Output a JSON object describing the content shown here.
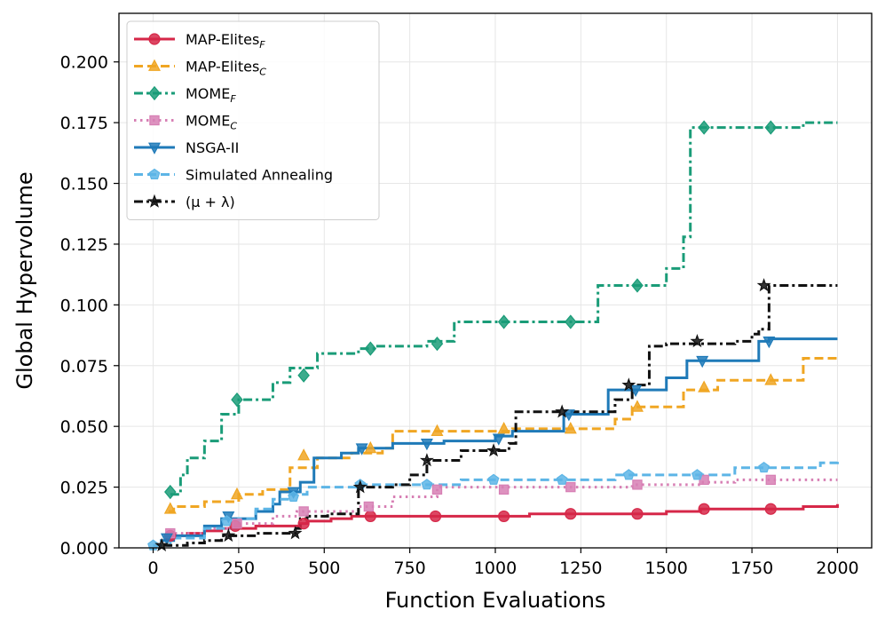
{
  "chart_data": {
    "type": "line",
    "title": "",
    "xlabel": "Function Evaluations",
    "ylabel": "Global Hypervolume",
    "xlim": [
      -100,
      2100
    ],
    "ylim": [
      0,
      0.22
    ],
    "xticks": [
      0,
      250,
      500,
      750,
      1000,
      1250,
      1500,
      1750,
      2000
    ],
    "xtick_labels": [
      "0",
      "250",
      "500",
      "750",
      "1000",
      "1250",
      "1500",
      "1750",
      "2000"
    ],
    "yticks": [
      0,
      0.025,
      0.05,
      0.075,
      0.1,
      0.125,
      0.15,
      0.175,
      0.2
    ],
    "ytick_labels": [
      "0.000",
      "0.025",
      "0.050",
      "0.075",
      "0.100",
      "0.125",
      "0.150",
      "0.175",
      "0.200"
    ],
    "grid": true,
    "legend_position": "top-left",
    "step": true,
    "series": [
      {
        "name": "MAP-Elites",
        "subscript": "F",
        "color": "#d62748",
        "dash": "solid",
        "marker": "circle",
        "x": [
          50,
          100,
          150,
          200,
          300,
          350,
          430,
          450,
          520,
          580,
          700,
          800,
          1000,
          1100,
          1300,
          1500,
          1600,
          1800,
          1900,
          2000
        ],
        "y": [
          0.005,
          0.006,
          0.007,
          0.008,
          0.009,
          0.009,
          0.01,
          0.011,
          0.012,
          0.013,
          0.013,
          0.013,
          0.013,
          0.014,
          0.014,
          0.015,
          0.016,
          0.016,
          0.017,
          0.018
        ],
        "marker_x": [
          50,
          240,
          440,
          635,
          825,
          1025,
          1220,
          1415,
          1610,
          1805
        ],
        "marker_y": [
          0.005,
          0.009,
          0.01,
          0.013,
          0.013,
          0.013,
          0.014,
          0.014,
          0.016,
          0.016
        ]
      },
      {
        "name": "MAP-Elites",
        "subscript": "C",
        "color": "#f0a623",
        "dash": "dashed",
        "marker": "triangle-up",
        "x": [
          45,
          60,
          150,
          250,
          320,
          400,
          480,
          580,
          670,
          700,
          1050,
          1350,
          1400,
          1550,
          1650,
          1900,
          2000
        ],
        "y": [
          0.015,
          0.017,
          0.019,
          0.022,
          0.024,
          0.033,
          0.037,
          0.039,
          0.041,
          0.048,
          0.049,
          0.053,
          0.058,
          0.065,
          0.069,
          0.078,
          0.078
        ],
        "marker_x": [
          50,
          245,
          440,
          635,
          830,
          1025,
          1220,
          1415,
          1610,
          1805
        ],
        "marker_y": [
          0.016,
          0.022,
          0.038,
          0.041,
          0.048,
          0.049,
          0.049,
          0.058,
          0.066,
          0.069
        ]
      },
      {
        "name": "MOME",
        "subscript": "F",
        "color": "#1a9c78",
        "dash": "dashdot",
        "marker": "diamond",
        "x": [
          50,
          80,
          100,
          150,
          200,
          250,
          350,
          400,
          480,
          600,
          650,
          800,
          880,
          1000,
          1200,
          1300,
          1400,
          1500,
          1550,
          1570,
          1800,
          1900,
          2000
        ],
        "y": [
          0.022,
          0.03,
          0.037,
          0.044,
          0.055,
          0.061,
          0.068,
          0.074,
          0.08,
          0.082,
          0.083,
          0.085,
          0.093,
          0.093,
          0.093,
          0.108,
          0.108,
          0.115,
          0.128,
          0.173,
          0.173,
          0.175,
          0.175
        ],
        "marker_x": [
          50,
          245,
          440,
          635,
          830,
          1025,
          1220,
          1415,
          1610,
          1805
        ],
        "marker_y": [
          0.023,
          0.061,
          0.071,
          0.082,
          0.084,
          0.093,
          0.093,
          0.108,
          0.173,
          0.173
        ]
      },
      {
        "name": "MOME",
        "subscript": "C",
        "color": "#d77fb4",
        "dash": "dotted",
        "marker": "square",
        "x": [
          30,
          60,
          150,
          250,
          350,
          420,
          600,
          700,
          830,
          1000,
          1300,
          1400,
          1600,
          1700,
          2000
        ],
        "y": [
          0.003,
          0.006,
          0.008,
          0.01,
          0.013,
          0.015,
          0.017,
          0.021,
          0.025,
          0.025,
          0.025,
          0.026,
          0.027,
          0.028,
          0.028
        ],
        "marker_x": [
          50,
          245,
          440,
          630,
          830,
          1025,
          1220,
          1415,
          1610,
          1805
        ],
        "marker_y": [
          0.006,
          0.01,
          0.015,
          0.017,
          0.024,
          0.024,
          0.025,
          0.026,
          0.028,
          0.028
        ]
      },
      {
        "name": "NSGA-II",
        "subscript": "",
        "color": "#1f7ab8",
        "dash": "solid",
        "marker": "triangle-down",
        "x": [
          20,
          60,
          150,
          200,
          300,
          350,
          370,
          430,
          470,
          550,
          600,
          700,
          850,
          1000,
          1050,
          1200,
          1330,
          1500,
          1560,
          1650,
          1770,
          1800,
          2000
        ],
        "y": [
          0.003,
          0.005,
          0.009,
          0.012,
          0.015,
          0.018,
          0.023,
          0.027,
          0.037,
          0.039,
          0.041,
          0.043,
          0.044,
          0.046,
          0.048,
          0.055,
          0.065,
          0.07,
          0.077,
          0.077,
          0.085,
          0.086,
          0.086
        ],
        "marker_x": [
          40,
          220,
          410,
          610,
          800,
          1010,
          1215,
          1410,
          1605,
          1800
        ],
        "marker_y": [
          0.004,
          0.013,
          0.023,
          0.041,
          0.043,
          0.045,
          0.055,
          0.065,
          0.077,
          0.085
        ]
      },
      {
        "name": "Simulated Annealing",
        "subscript": "",
        "color": "#5db5e6",
        "dash": "dashed",
        "marker": "pentagon",
        "x": [
          0,
          50,
          150,
          250,
          300,
          350,
          400,
          450,
          600,
          700,
          900,
          1000,
          1200,
          1350,
          1500,
          1700,
          1900,
          1950,
          2000
        ],
        "y": [
          0.001,
          0.004,
          0.008,
          0.012,
          0.016,
          0.02,
          0.022,
          0.025,
          0.026,
          0.026,
          0.028,
          0.028,
          0.028,
          0.03,
          0.03,
          0.033,
          0.033,
          0.035,
          0.036
        ],
        "marker_x": [
          0,
          215,
          410,
          605,
          800,
          995,
          1195,
          1390,
          1590,
          1785
        ],
        "marker_y": [
          0.001,
          0.011,
          0.021,
          0.026,
          0.026,
          0.028,
          0.028,
          0.03,
          0.03,
          0.033
        ]
      },
      {
        "name": "(μ + λ)",
        "subscript": "",
        "color": "#111111",
        "dash": "dashdot",
        "marker": "star",
        "x": [
          30,
          100,
          150,
          200,
          300,
          400,
          420,
          430,
          450,
          510,
          600,
          700,
          750,
          800,
          900,
          1000,
          1040,
          1060,
          1150,
          1200,
          1350,
          1400,
          1450,
          1500,
          1700,
          1750,
          1770,
          1800,
          2000
        ],
        "y": [
          0.001,
          0.002,
          0.003,
          0.005,
          0.006,
          0.006,
          0.008,
          0.012,
          0.013,
          0.014,
          0.025,
          0.026,
          0.03,
          0.036,
          0.04,
          0.04,
          0.043,
          0.056,
          0.056,
          0.056,
          0.061,
          0.067,
          0.083,
          0.084,
          0.085,
          0.088,
          0.09,
          0.108,
          0.108
        ],
        "marker_x": [
          25,
          220,
          415,
          605,
          800,
          995,
          1195,
          1390,
          1590,
          1785
        ],
        "marker_y": [
          0.001,
          0.005,
          0.006,
          0.025,
          0.036,
          0.04,
          0.056,
          0.067,
          0.085,
          0.108
        ]
      }
    ]
  }
}
